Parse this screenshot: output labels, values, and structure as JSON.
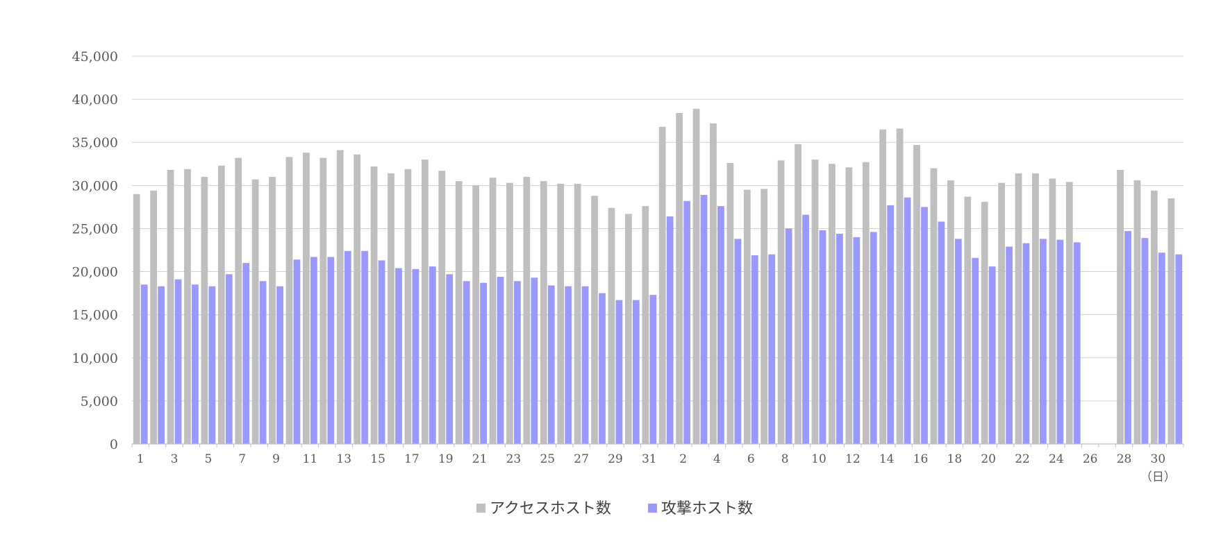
{
  "chart_data": {
    "type": "bar",
    "x_tick_labels": [
      "1",
      "",
      "3",
      "",
      "5",
      "",
      "7",
      "",
      "9",
      "",
      "11",
      "",
      "13",
      "",
      "15",
      "",
      "17",
      "",
      "19",
      "",
      "21",
      "",
      "23",
      "",
      "25",
      "",
      "27",
      "",
      "29",
      "",
      "31",
      "",
      "2",
      "",
      "4",
      "",
      "6",
      "",
      "8",
      "",
      "10",
      "",
      "12",
      "",
      "14",
      "",
      "16",
      "",
      "18",
      "",
      "20",
      "",
      "22",
      "",
      "24",
      "",
      "26",
      "",
      "28",
      "",
      "30",
      ""
    ],
    "unit_label": "（日）",
    "ylim": [
      0,
      45000
    ],
    "yticks": [
      "0",
      "5,000",
      "10,000",
      "15,000",
      "20,000",
      "25,000",
      "30,000",
      "35,000",
      "40,000",
      "45,000"
    ],
    "grid": true,
    "legend_position": "bottom",
    "series": [
      {
        "name": "アクセスホスト数",
        "color": "#bfbfbf",
        "values": [
          29000,
          29400,
          31800,
          31900,
          31000,
          32300,
          33200,
          30700,
          31000,
          33300,
          33800,
          33200,
          34100,
          33600,
          32200,
          31400,
          31900,
          33000,
          31700,
          30500,
          30000,
          30900,
          30300,
          31000,
          30500,
          30200,
          30200,
          28800,
          27400,
          26700,
          27600,
          36800,
          38400,
          38900,
          37200,
          32600,
          29500,
          29600,
          32900,
          34800,
          33000,
          32500,
          32100,
          32700,
          36500,
          36600,
          34700,
          32000,
          30600,
          28700,
          28100,
          30300,
          31400,
          31400,
          30800,
          30400,
          null,
          null,
          31800,
          30600,
          29400,
          28500
        ]
      },
      {
        "name": "攻撃ホスト数",
        "color": "#9999ff",
        "values": [
          18500,
          18300,
          19100,
          18500,
          18300,
          19700,
          21000,
          18900,
          18300,
          21400,
          21700,
          21700,
          22400,
          22400,
          21300,
          20400,
          20300,
          20600,
          19700,
          18900,
          18700,
          19400,
          18900,
          19300,
          18400,
          18300,
          18300,
          17500,
          16700,
          16700,
          17300,
          26400,
          28200,
          28900,
          27600,
          23800,
          21900,
          22000,
          25000,
          26600,
          24800,
          24400,
          24000,
          24600,
          27700,
          28600,
          27500,
          25800,
          23800,
          21600,
          20600,
          22900,
          23300,
          23800,
          23700,
          23400,
          null,
          null,
          24700,
          23900,
          22200,
          22000
        ]
      }
    ]
  }
}
